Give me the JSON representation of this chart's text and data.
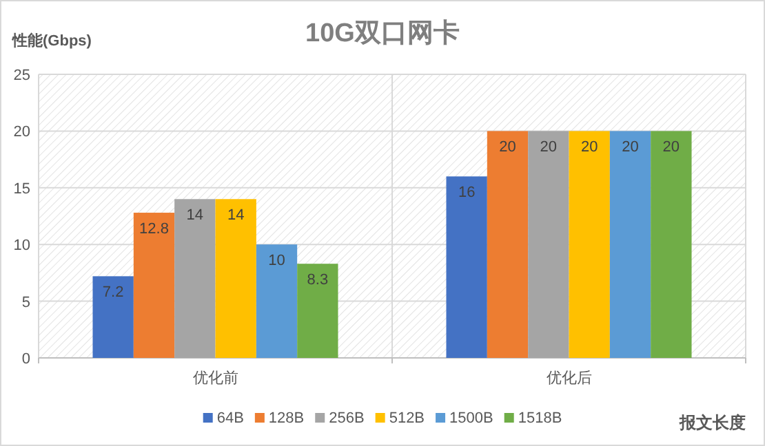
{
  "chart_data": {
    "type": "bar",
    "title": "10G双口网卡",
    "ylabel": "性能(Gbps)",
    "xlabel": "报文长度",
    "categories": [
      "优化前",
      "优化后"
    ],
    "series": [
      {
        "name": "64B",
        "color": "#4472c4",
        "values": [
          7.2,
          16
        ]
      },
      {
        "name": "128B",
        "color": "#ed7d31",
        "values": [
          12.8,
          20
        ]
      },
      {
        "name": "256B",
        "color": "#a5a5a5",
        "values": [
          14,
          20
        ]
      },
      {
        "name": "512B",
        "color": "#ffc000",
        "values": [
          14,
          20
        ]
      },
      {
        "name": "1500B",
        "color": "#5b9bd5",
        "values": [
          10,
          20
        ]
      },
      {
        "name": "1518B",
        "color": "#70ad47",
        "values": [
          8.3,
          20
        ]
      }
    ],
    "ylim": [
      0,
      25
    ],
    "yticks": [
      0,
      5,
      10,
      15,
      20,
      25
    ],
    "grid": true,
    "legend": "bottom",
    "data_labels": true
  }
}
